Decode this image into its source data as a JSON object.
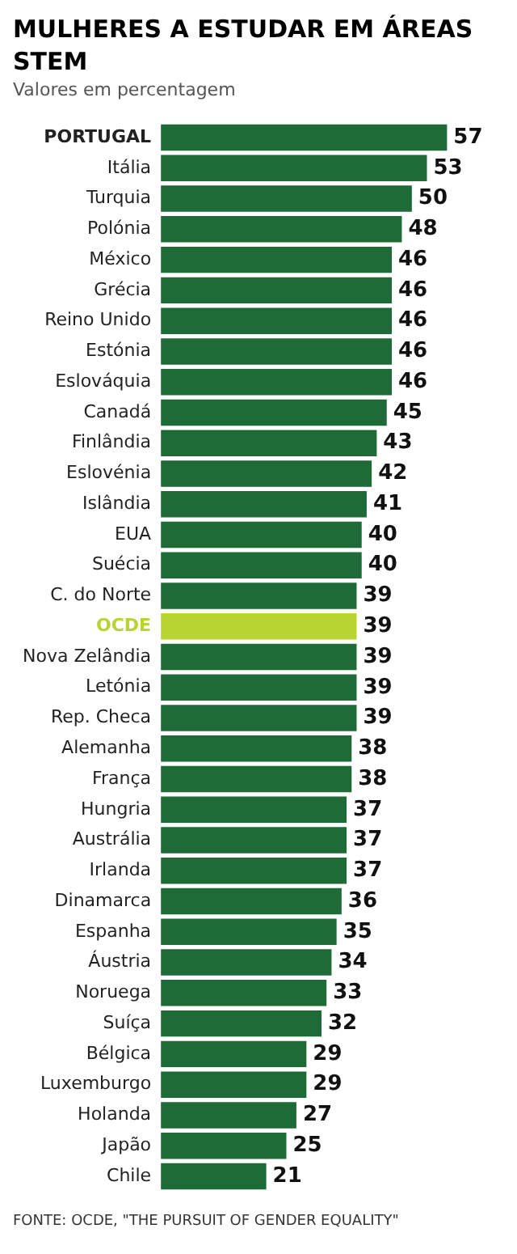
{
  "chart_data": {
    "type": "bar",
    "orientation": "horizontal",
    "title": "MULHERES A ESTUDAR EM ÁREAS STEM",
    "subtitle": "Valores em percentagem",
    "categories": [
      "PORTUGAL",
      "Itália",
      "Turquia",
      "Polónia",
      "México",
      "Grécia",
      "Reino Unido",
      "Estónia",
      "Eslováquia",
      "Canadá",
      "Finlândia",
      "Eslovénia",
      "Islândia",
      "EUA",
      "Suécia",
      "C. do Norte",
      "OCDE",
      "Nova Zelândia",
      "Letónia",
      "Rep. Checa",
      "Alemanha",
      "França",
      "Hungria",
      "Austrália",
      "Irlanda",
      "Dinamarca",
      "Espanha",
      "Áustria",
      "Noruega",
      "Suíça",
      "Bélgica",
      "Luxemburgo",
      "Holanda",
      "Japão",
      "Chile"
    ],
    "values": [
      57,
      53,
      50,
      48,
      46,
      46,
      46,
      46,
      46,
      45,
      43,
      42,
      41,
      40,
      40,
      39,
      39,
      39,
      39,
      39,
      38,
      38,
      37,
      37,
      37,
      36,
      35,
      34,
      33,
      32,
      29,
      29,
      27,
      25,
      21
    ],
    "colors": [
      "#1e6b38",
      "#1e6b38",
      "#1e6b38",
      "#1e6b38",
      "#1e6b38",
      "#1e6b38",
      "#1e6b38",
      "#1e6b38",
      "#1e6b38",
      "#1e6b38",
      "#1e6b38",
      "#1e6b38",
      "#1e6b38",
      "#1e6b38",
      "#1e6b38",
      "#1e6b38",
      "#b8d432",
      "#1e6b38",
      "#1e6b38",
      "#1e6b38",
      "#1e6b38",
      "#1e6b38",
      "#1e6b38",
      "#1e6b38",
      "#1e6b38",
      "#1e6b38",
      "#1e6b38",
      "#1e6b38",
      "#1e6b38",
      "#1e6b38",
      "#1e6b38",
      "#1e6b38",
      "#1e6b38",
      "#1e6b38",
      "#1e6b38"
    ],
    "data_labels": true,
    "grid": false,
    "legend": false,
    "annotations": [
      "FONTE: OCDE, \"THE PURSUIT OF GENDER EQUALITY\""
    ]
  }
}
